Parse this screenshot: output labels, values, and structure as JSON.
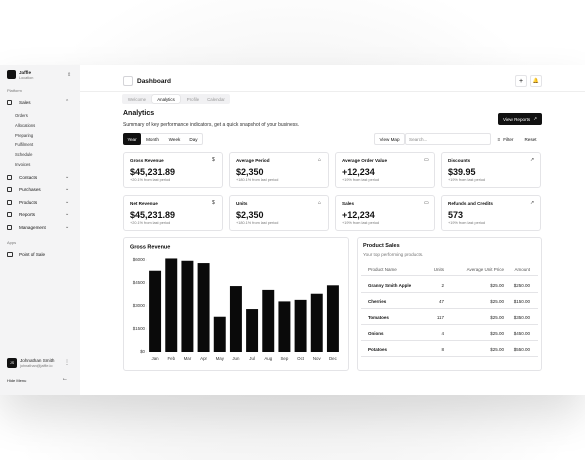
{
  "sidebar": {
    "brand": {
      "name": "Jaffle",
      "location": "Location"
    },
    "section": "Platform",
    "nav": [
      {
        "label": "Sales",
        "children": [
          "Orders",
          "Allocations",
          "Preparing",
          "Fulfilment",
          "Schedule",
          "Invoices"
        ]
      },
      {
        "label": "Contacts"
      },
      {
        "label": "Purchases"
      },
      {
        "label": "Products"
      },
      {
        "label": "Reports"
      },
      {
        "label": "Management"
      }
    ],
    "apps_section": "Apps",
    "apps": [
      "Point of Sale"
    ],
    "user": {
      "initials": "JS",
      "name": "Johnathan Smith",
      "email": "johnathan@jaffle.io"
    },
    "hide_menu": "Hide Menu"
  },
  "header": {
    "title": "Dashboard"
  },
  "tabs": [
    "Welcome",
    "Analytics",
    "Profile",
    "Calendar"
  ],
  "section": {
    "title": "Analytics",
    "subtitle": "Summary of key performance indicators, get a quick snapshot of your business.",
    "action": "View Reports"
  },
  "periods": [
    "Year",
    "Month",
    "Week",
    "Day"
  ],
  "toolbar": {
    "view_map": "View Map",
    "search_placeholder": "Search...",
    "filter": "Filter",
    "reset": "Reset"
  },
  "kpis": [
    {
      "label": "Gross Revenue",
      "value": "$45,231.89",
      "change": "+20.1% from last period"
    },
    {
      "label": "Average Period",
      "value": "$2,350",
      "change": "+180.1% from last period"
    },
    {
      "label": "Average Order Value",
      "value": "+12,234",
      "change": "+19% from last period"
    },
    {
      "label": "Discounts",
      "value": "$39.95",
      "change": "+19% from last period"
    },
    {
      "label": "Net Revenue",
      "value": "$45,231.89",
      "change": "+20.1% from last period"
    },
    {
      "label": "Units",
      "value": "$2,350",
      "change": "+180.1% from last period"
    },
    {
      "label": "Sales",
      "value": "+12,234",
      "change": "+19% from last period"
    },
    {
      "label": "Refunds and Credits",
      "value": "573",
      "change": "+19% from last period"
    }
  ],
  "chart_data": {
    "type": "bar",
    "title": "Gross Revenue",
    "categories": [
      "Jan",
      "Feb",
      "Mar",
      "Apr",
      "May",
      "Jun",
      "Jul",
      "Aug",
      "Sep",
      "Oct",
      "Nov",
      "Dec"
    ],
    "values": [
      5300,
      6100,
      5950,
      5800,
      2300,
      4300,
      2800,
      4050,
      3300,
      3400,
      3800,
      4350
    ],
    "color": "#0a0a0a",
    "ylim": [
      0,
      6000
    ],
    "yticks": [
      {
        "value": 0,
        "label": "$0"
      },
      {
        "value": 1500,
        "label": "$1500"
      },
      {
        "value": 3000,
        "label": "$3000"
      },
      {
        "value": 4500,
        "label": "$4500"
      },
      {
        "value": 6000,
        "label": "$6000"
      }
    ],
    "grid": false
  },
  "product_sales": {
    "title": "Product Sales",
    "subtitle": "Your top performing products.",
    "columns": [
      "Product Name",
      "Units",
      "Average Unit Price",
      "Amount"
    ],
    "rows": [
      [
        "Granny Smith Apple",
        2,
        "$25.00",
        "$250.00"
      ],
      [
        "Cherries",
        47,
        "$25.00",
        "$150.00"
      ],
      [
        "Tomatoes",
        117,
        "$25.00",
        "$350.00"
      ],
      [
        "Onions",
        4,
        "$25.00",
        "$450.00"
      ],
      [
        "Potatoes",
        8,
        "$25.00",
        "$550.00"
      ]
    ]
  }
}
